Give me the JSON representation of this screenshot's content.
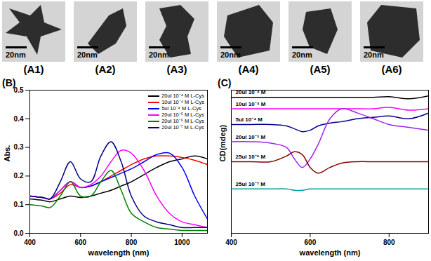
{
  "images": [
    {
      "label": "(A1)",
      "scale_bar": "20nm"
    },
    {
      "label": "(A2)",
      "scale_bar": "20nm"
    },
    {
      "label": "(A3)",
      "scale_bar": "20nm"
    },
    {
      "label": "(A4)",
      "scale_bar": "20nm"
    },
    {
      "label": "(A5)",
      "scale_bar": "20nm"
    },
    {
      "label": "(A6)",
      "scale_bar": "20nm"
    }
  ],
  "chart_data": [
    {
      "type": "line",
      "title": "(B)",
      "x_label": "wavelength (nm)",
      "y_label": "Abs.",
      "xlim": [
        400,
        1100
      ],
      "xticks": [
        400,
        600,
        800,
        1000
      ],
      "ylim": [
        0,
        0.5
      ],
      "yticks": [
        {
          "value": 0,
          "label": "0.0"
        },
        0.1,
        0.2,
        0.3,
        0.4,
        0.5
      ],
      "legend": "top-right",
      "x": [
        400,
        450,
        480,
        520,
        560,
        600,
        640,
        680,
        720,
        760,
        800,
        850,
        900,
        950,
        1000,
        1050,
        1100
      ],
      "series": [
        {
          "name": "20ul 10⁻⁴ M L-Cys",
          "color": "#000000",
          "values": [
            0.12,
            0.115,
            0.11,
            0.12,
            0.13,
            0.125,
            0.13,
            0.14,
            0.15,
            0.165,
            0.18,
            0.205,
            0.23,
            0.25,
            0.26,
            0.27,
            0.26
          ]
        },
        {
          "name": "10ul 10⁻⁴ M L-Cys",
          "color": "#ff0000",
          "values": [
            0.13,
            0.125,
            0.12,
            0.14,
            0.17,
            0.16,
            0.165,
            0.18,
            0.2,
            0.22,
            0.24,
            0.26,
            0.27,
            0.27,
            0.265,
            0.255,
            0.24
          ]
        },
        {
          "name": "5ul 10⁻⁴ M L-Cys",
          "color": "#0000ff",
          "values": [
            0.13,
            0.125,
            0.12,
            0.15,
            0.18,
            0.16,
            0.165,
            0.18,
            0.195,
            0.21,
            0.225,
            0.25,
            0.275,
            0.28,
            0.23,
            0.13,
            0.05
          ]
        },
        {
          "name": "20ul 10⁻⁵ M L-Cys",
          "color": "#ff00ff",
          "values": [
            0.13,
            0.125,
            0.12,
            0.15,
            0.18,
            0.16,
            0.17,
            0.2,
            0.25,
            0.29,
            0.28,
            0.22,
            0.13,
            0.07,
            0.04,
            0.03,
            0.02
          ]
        },
        {
          "name": "20ul 10⁻⁶ M L-Cys",
          "color": "#008000",
          "values": [
            0.1,
            0.095,
            0.09,
            0.13,
            0.18,
            0.13,
            0.13,
            0.18,
            0.22,
            0.15,
            0.07,
            0.04,
            0.02,
            0.015,
            0.01,
            0.01,
            0.01
          ]
        },
        {
          "name": "20ul 10⁻⁷ M L-Cys",
          "color": "#000080",
          "values": [
            0.13,
            0.125,
            0.12,
            0.18,
            0.25,
            0.19,
            0.18,
            0.27,
            0.32,
            0.25,
            0.13,
            0.06,
            0.04,
            0.03,
            0.02,
            0.02,
            0.02
          ]
        }
      ]
    },
    {
      "type": "line",
      "title": "(C)",
      "x_label": "wavelength (nm)",
      "y_label": "CD(mdeg)",
      "xlim": [
        400,
        900
      ],
      "xticks": [
        400,
        600,
        800
      ],
      "ylim": [
        0,
        100
      ],
      "yticks": [],
      "tick_labels": "x",
      "x": [
        400,
        450,
        500,
        540,
        560,
        580,
        600,
        620,
        650,
        680,
        720,
        760,
        800,
        850,
        900
      ],
      "series": [
        {
          "name": "20ul 10⁻⁴ M",
          "color": "#000000",
          "values": [
            95,
            95,
            95,
            95,
            95,
            95,
            95,
            95,
            95,
            95,
            95,
            95,
            95.5,
            94,
            96
          ]
        },
        {
          "name": "10ul 10⁻⁴ M",
          "color": "#ff00ff",
          "values": [
            87,
            87,
            87,
            87,
            87,
            87,
            87,
            87,
            87,
            87,
            87,
            87,
            88,
            86,
            87
          ]
        },
        {
          "name": "5ul 10⁻⁴ M",
          "color": "#00008b",
          "values": [
            76,
            76,
            76,
            75,
            73,
            71,
            72,
            75,
            77,
            78,
            80,
            81,
            82,
            80,
            84
          ]
        },
        {
          "name": "20ul 10⁻⁵ M",
          "color": "#a020f0",
          "values": [
            64,
            64,
            63,
            60,
            52,
            46,
            52,
            62,
            80,
            87,
            84,
            80,
            76,
            74,
            72
          ]
        },
        {
          "name": "25ul 10⁻⁶ M",
          "color": "#800000",
          "values": [
            50,
            50,
            50,
            54,
            57,
            55,
            46,
            42,
            46,
            49,
            50,
            50,
            50,
            50,
            50
          ]
        },
        {
          "name": "25ul 10⁻⁷ M",
          "color": "#00a0a0",
          "values": [
            31,
            31,
            31,
            31,
            30,
            30,
            31,
            31,
            31,
            31,
            31,
            31,
            31,
            31,
            31
          ]
        }
      ]
    }
  ]
}
